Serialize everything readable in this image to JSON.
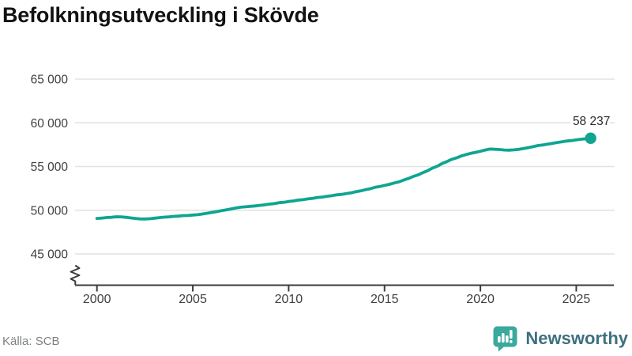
{
  "title": "Befolkningsutveckling i Skövde",
  "source": "Källa: SCB",
  "branding": {
    "name": "Newsworthy",
    "icon": "newsworthy-speech-bubble-bar-chart-icon",
    "icon_color": "#3aa99e",
    "wordmark_color": "#3e7080"
  },
  "chart_data": {
    "type": "line",
    "title": "Befolkningsutveckling i Skövde",
    "xlabel": "",
    "ylabel": "",
    "grid": "horizontal",
    "legend_position": "none",
    "line_color": "#0fa591",
    "gridline_color": "#e2e2e2",
    "axis_color": "#3d3d3d",
    "tick_label_color": "#3f3f3f",
    "end_label": "58 237",
    "end_value": 58237,
    "yticks": [
      45000,
      50000,
      55000,
      60000,
      65000
    ],
    "ytick_labels": [
      "45 000",
      "50 000",
      "55 000",
      "60 000",
      "65 000"
    ],
    "xticks": [
      2000,
      2005,
      2010,
      2015,
      2020,
      2025
    ],
    "xtick_labels": [
      "2000",
      "2005",
      "2010",
      "2015",
      "2020",
      "2025"
    ],
    "ylim": [
      45000,
      65000
    ],
    "xlim": [
      2000,
      2025.75
    ],
    "axis_break": true,
    "series": [
      {
        "name": "Befolkning",
        "x_start": 2000,
        "x_step": 0.25,
        "values": [
          49060,
          49100,
          49160,
          49190,
          49250,
          49240,
          49190,
          49130,
          49060,
          49010,
          49000,
          49030,
          49090,
          49150,
          49210,
          49240,
          49300,
          49330,
          49390,
          49400,
          49450,
          49490,
          49570,
          49660,
          49750,
          49840,
          49960,
          50040,
          50150,
          50260,
          50350,
          50390,
          50450,
          50490,
          50560,
          50620,
          50700,
          50760,
          50860,
          50910,
          51000,
          51060,
          51160,
          51210,
          51300,
          51360,
          51460,
          51510,
          51600,
          51660,
          51760,
          51810,
          51900,
          51990,
          52110,
          52210,
          52350,
          52460,
          52620,
          52710,
          52850,
          52960,
          53120,
          53240,
          53450,
          53630,
          53870,
          54040,
          54300,
          54530,
          54820,
          55040,
          55340,
          55560,
          55820,
          55990,
          56200,
          56370,
          56510,
          56620,
          56750,
          56890,
          57000,
          56970,
          56950,
          56890,
          56870,
          56910,
          56960,
          57060,
          57160,
          57270,
          57400,
          57470,
          57560,
          57640,
          57750,
          57820,
          57910,
          57970,
          58050,
          58120,
          58180,
          58237
        ]
      }
    ]
  }
}
